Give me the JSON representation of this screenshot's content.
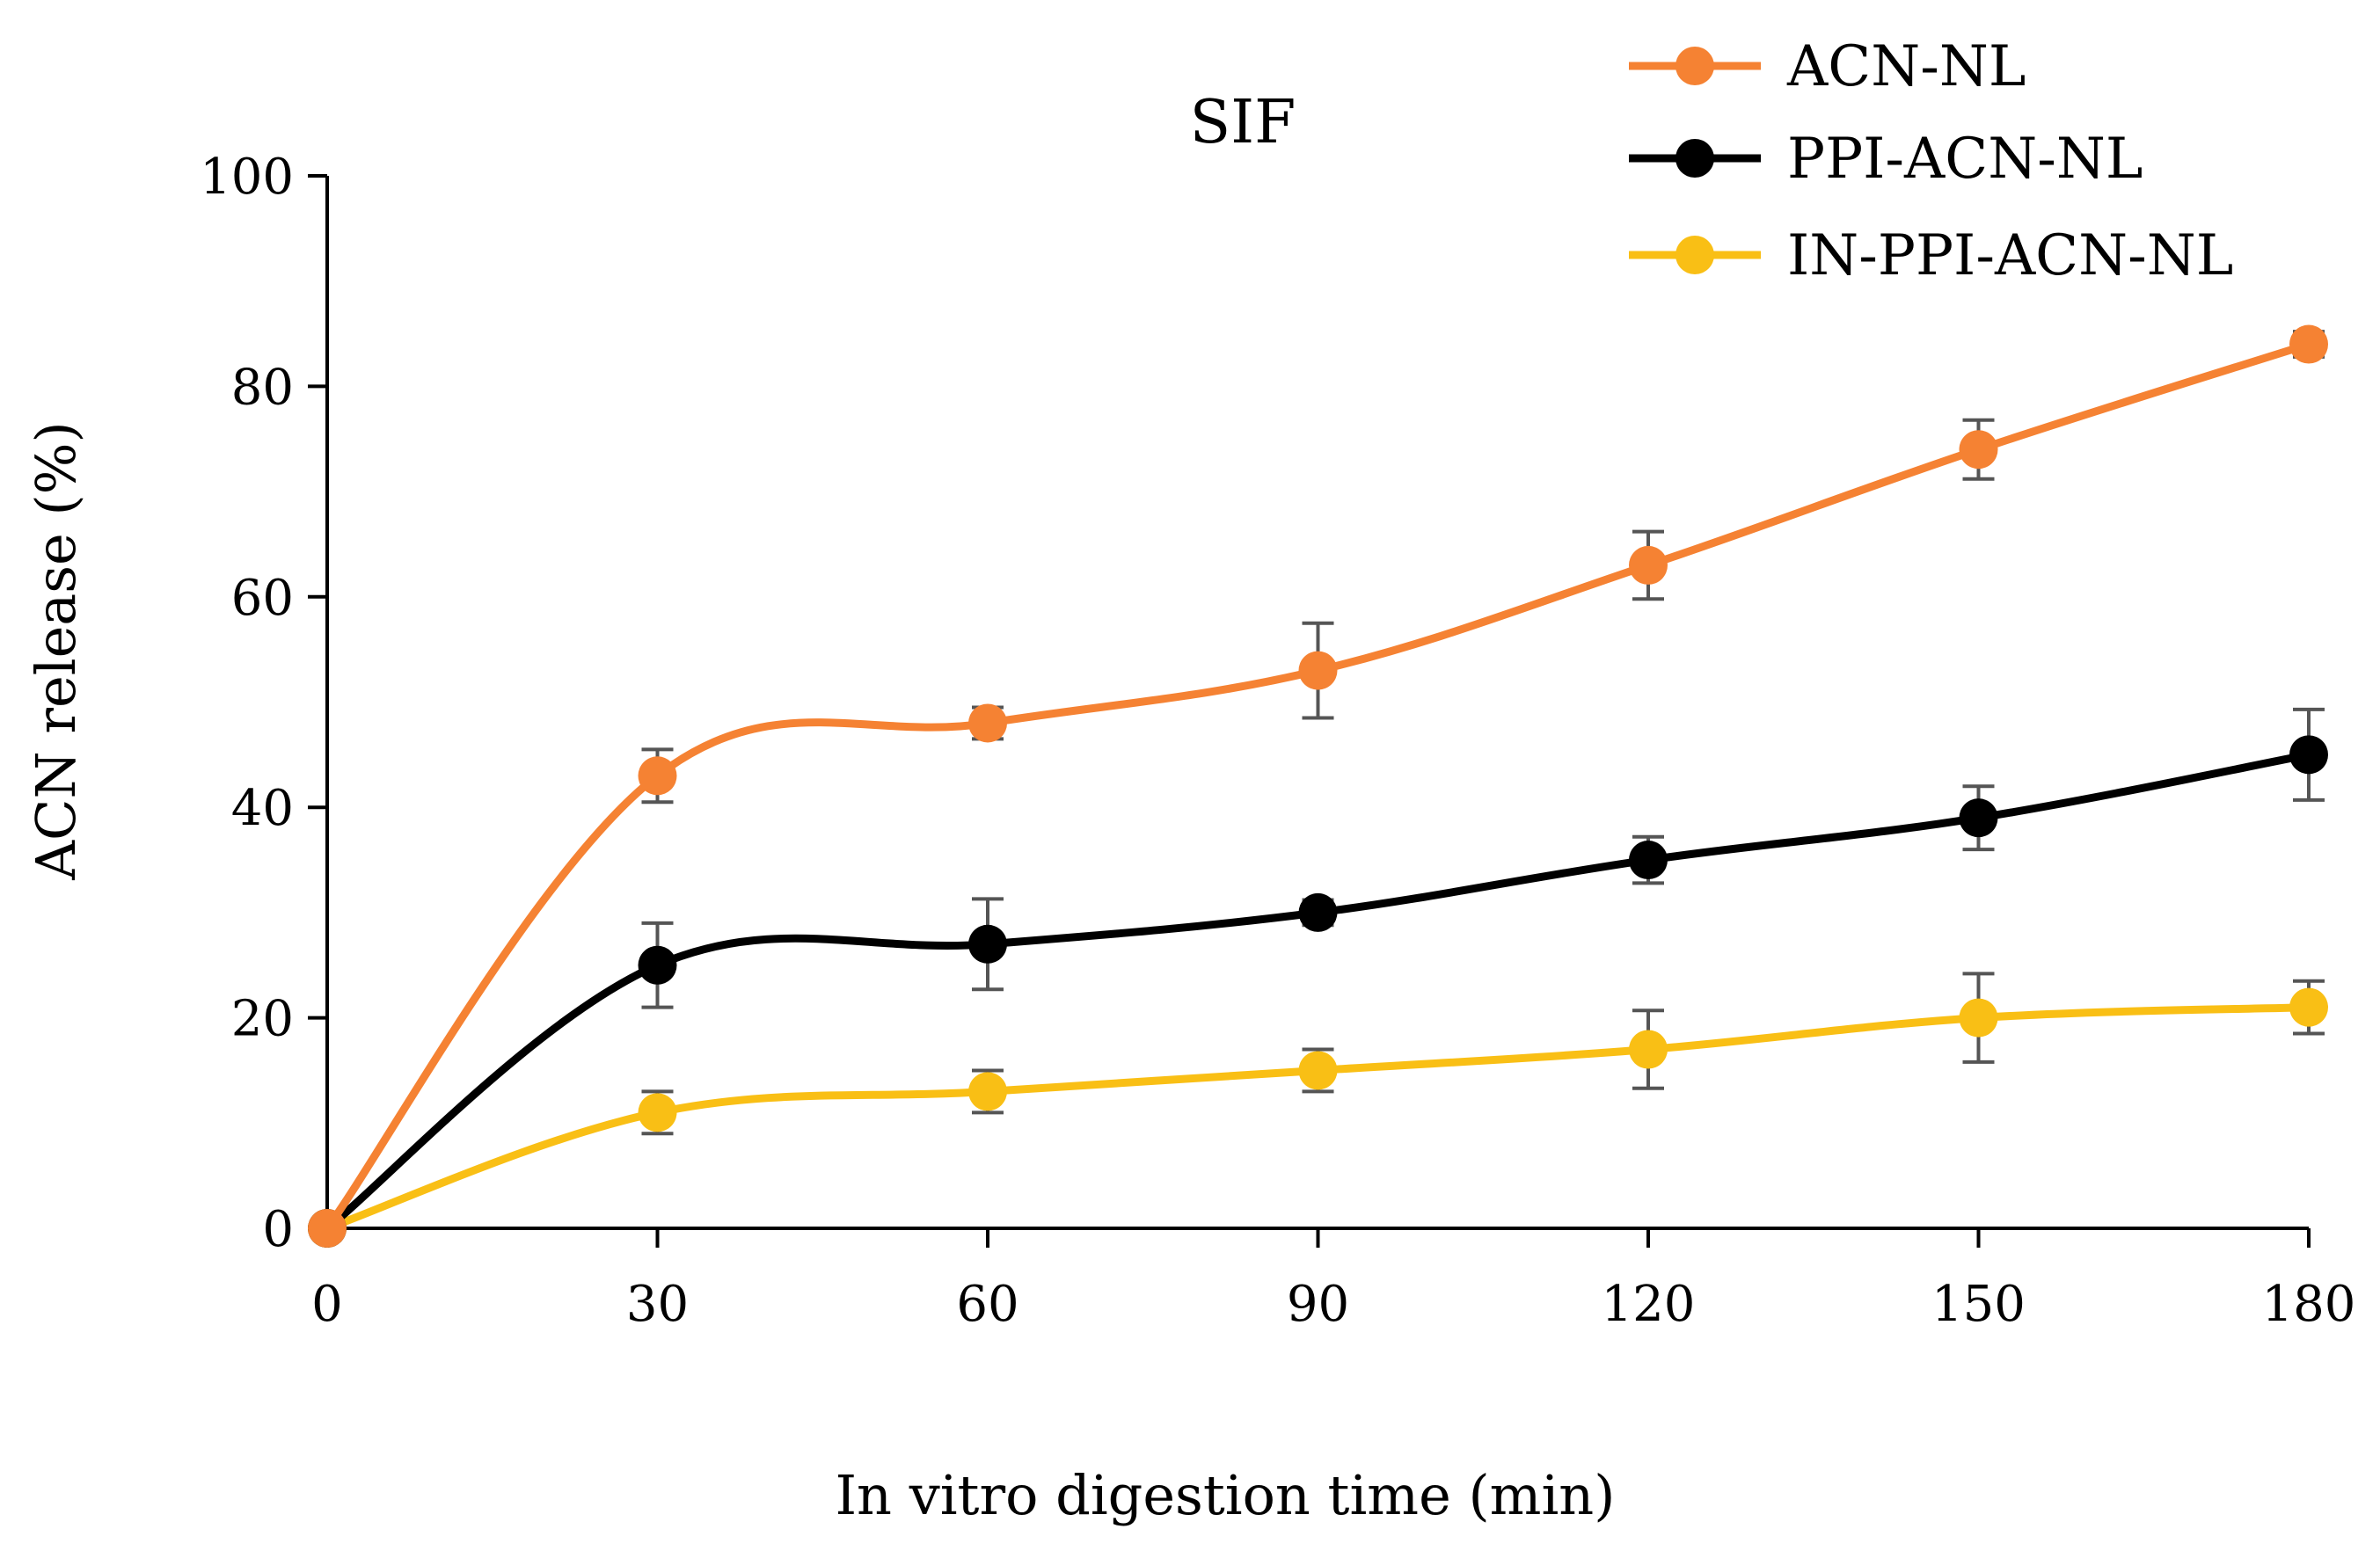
{
  "chart_data": {
    "type": "line",
    "title": "SIF",
    "xlabel": "In vitro digestion time (min)",
    "ylabel": "ACN release (%)",
    "x": [
      0,
      30,
      60,
      90,
      120,
      150,
      180
    ],
    "xlim": [
      0,
      180
    ],
    "ylim": [
      0,
      100
    ],
    "yticks": [
      0,
      20,
      40,
      60,
      80,
      100
    ],
    "grid": false,
    "legend_position": "top-right",
    "series": [
      {
        "name": "ACN-NL",
        "color": "#f58233",
        "values": [
          0,
          43,
          48,
          53,
          63,
          74,
          84
        ],
        "errors": [
          0,
          2.5,
          1.5,
          4.5,
          3.2,
          2.8,
          1.2
        ]
      },
      {
        "name": "PPI-ACN-NL",
        "color": "#000000",
        "values": [
          0,
          25,
          27,
          30,
          35,
          39,
          45
        ],
        "errors": [
          0,
          4.0,
          4.3,
          1.2,
          2.2,
          3.0,
          4.3
        ]
      },
      {
        "name": "IN-PPI-ACN-NL",
        "color": "#f9bf15",
        "values": [
          0,
          11,
          13,
          15,
          17,
          20,
          21
        ],
        "errors": [
          0,
          2.0,
          2.0,
          2.0,
          3.7,
          4.2,
          2.5
        ]
      }
    ]
  }
}
